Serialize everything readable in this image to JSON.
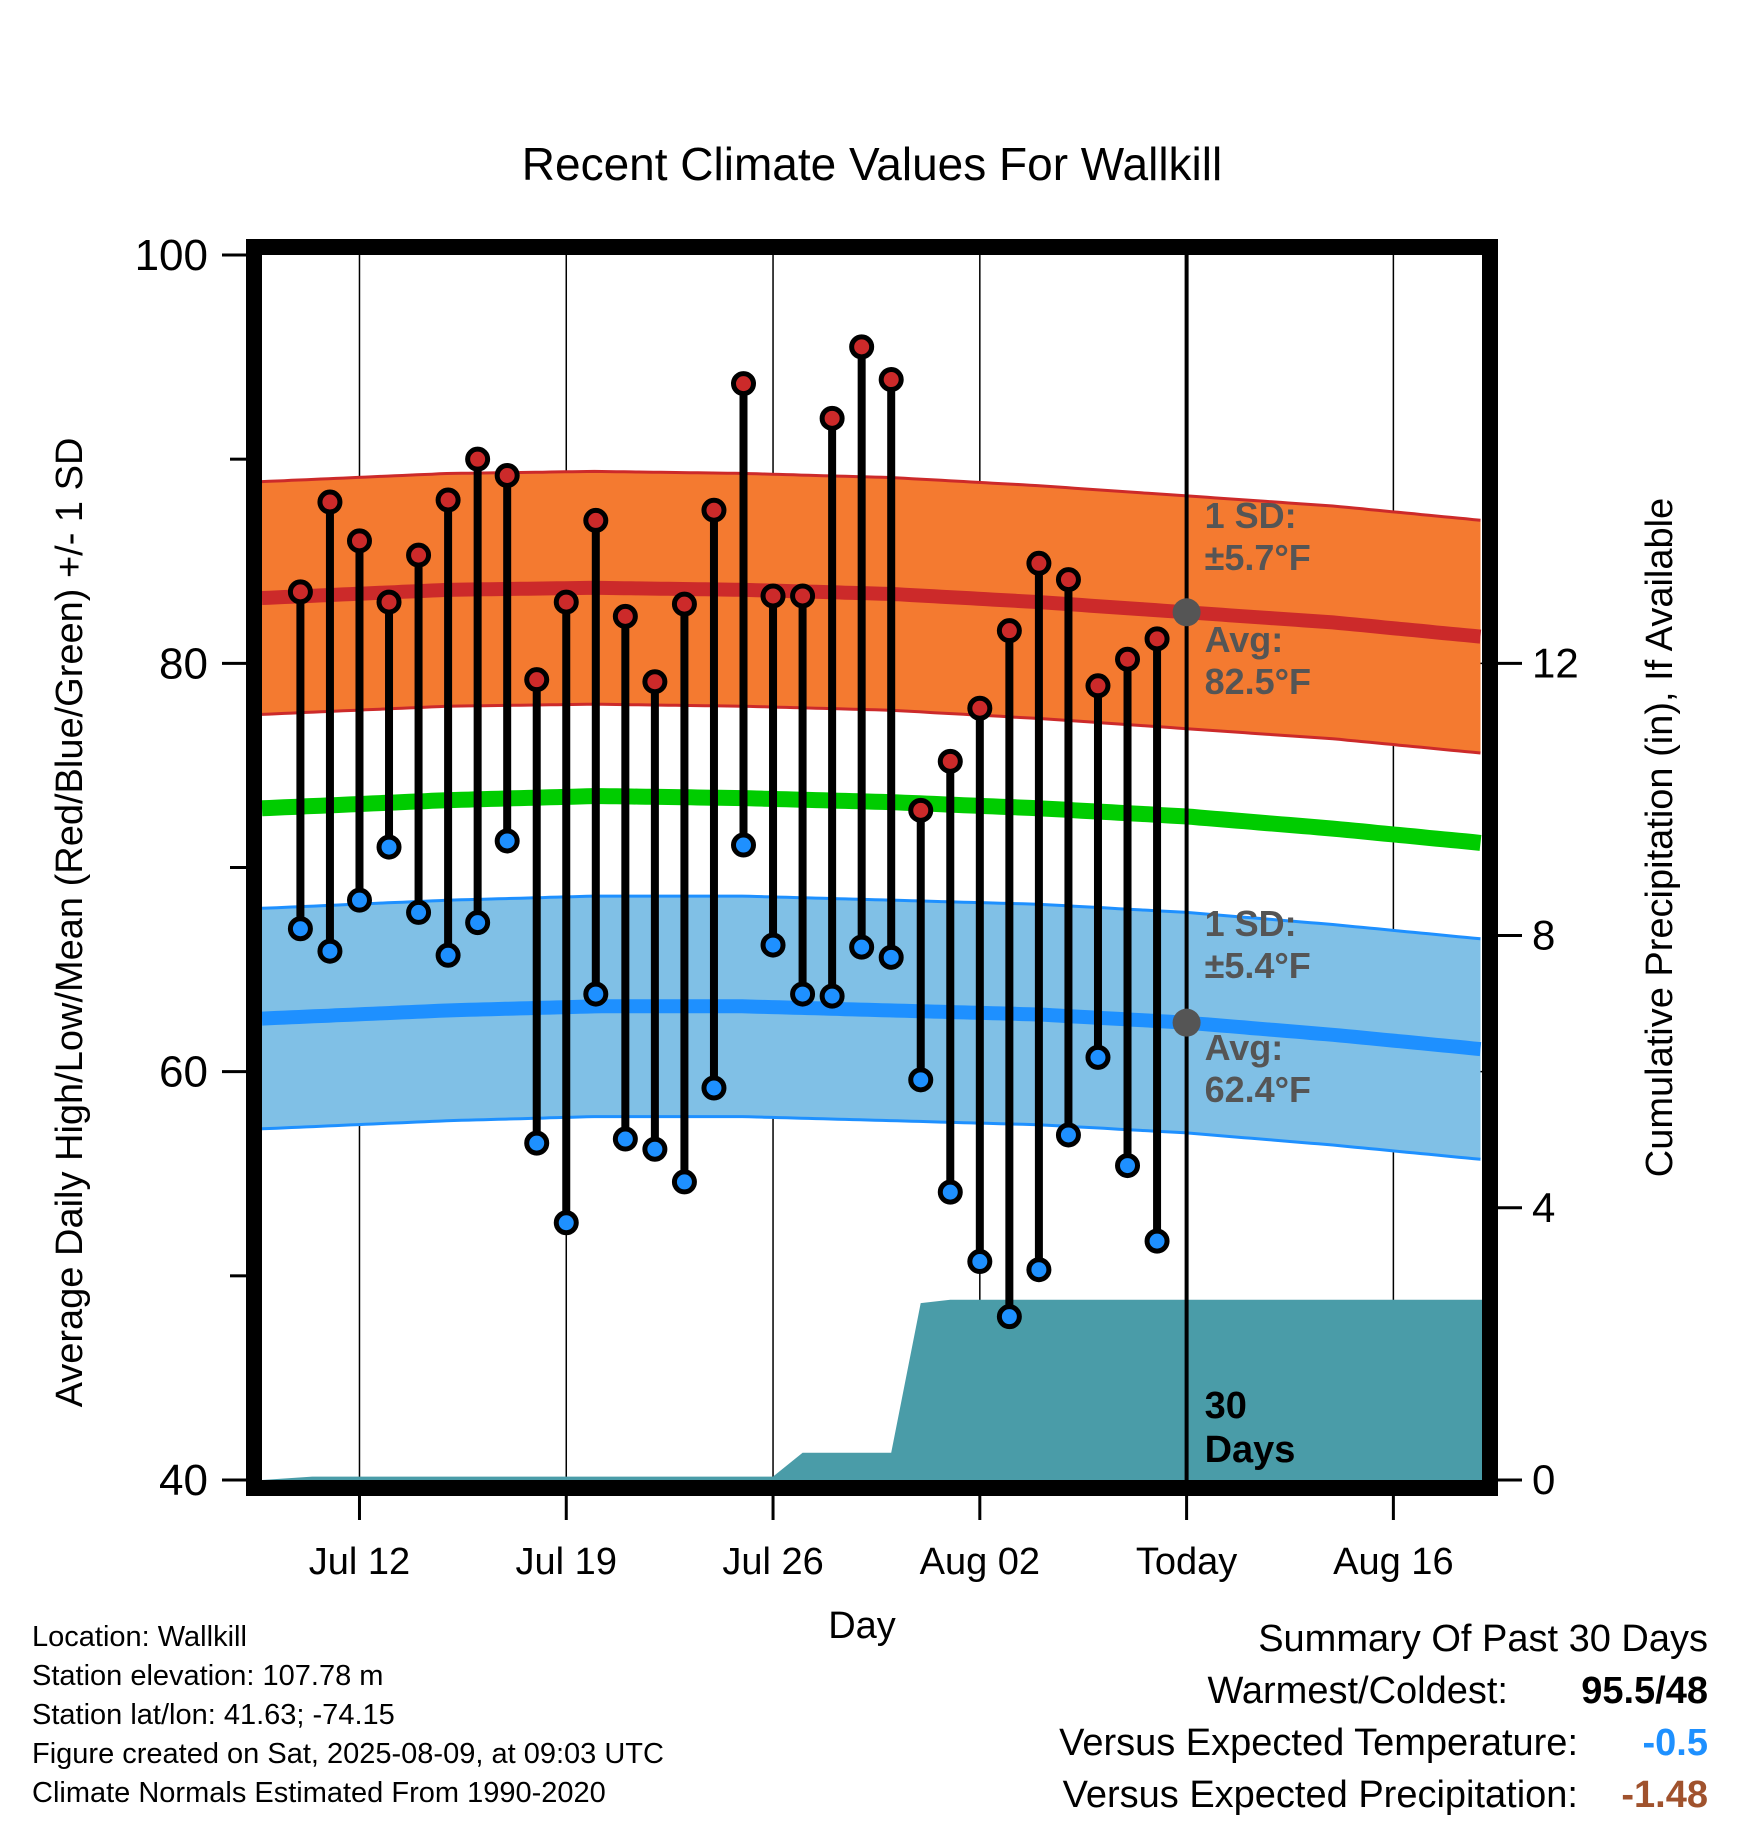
{
  "chart_data": {
    "type": "line",
    "title": "Recent Climate Values For Wallkill",
    "xlabel": "Day",
    "ylabel": "Average Daily High/Low/Mean (Red/Blue/Green) +/- 1 SD",
    "y2label": "Cumulative Precipitation (in), If Available",
    "ylim": [
      40,
      100
    ],
    "y_ticks": [
      "40",
      "60",
      "80",
      "100"
    ],
    "y2lim": [
      0,
      18
    ],
    "y2_ticks": [
      "0",
      "4",
      "8",
      "12"
    ],
    "x_ticks": [
      {
        "label": "Jul 12",
        "day": 12
      },
      {
        "label": "Jul 19",
        "day": 19
      },
      {
        "label": "Jul 26",
        "day": 26
      },
      {
        "label": "Aug 02",
        "day": 33
      },
      {
        "label": "Today",
        "day": 40
      },
      {
        "label": "Aug 16",
        "day": 47
      }
    ],
    "xlim_day": [
      8.7,
      50
    ],
    "days": [
      10,
      11,
      12,
      13,
      14,
      15,
      16,
      17,
      18,
      19,
      20,
      21,
      22,
      23,
      24,
      25,
      26,
      27,
      28,
      29,
      30,
      31,
      32,
      33,
      34,
      35,
      36,
      37,
      38,
      39
    ],
    "daily_high": [
      83.5,
      87.9,
      86.0,
      83.0,
      85.3,
      88.0,
      90.0,
      89.2,
      79.2,
      83.0,
      87.0,
      82.3,
      79.1,
      82.9,
      87.5,
      93.7,
      83.3,
      83.3,
      92.0,
      95.5,
      93.9,
      72.8,
      75.2,
      77.8,
      81.6,
      84.9,
      84.1,
      78.9,
      80.2,
      81.2
    ],
    "daily_low": [
      67.0,
      65.9,
      68.4,
      71.0,
      67.8,
      65.7,
      67.3,
      71.3,
      56.5,
      52.6,
      63.8,
      56.7,
      56.2,
      54.6,
      59.2,
      71.1,
      66.2,
      63.8,
      63.7,
      66.1,
      65.6,
      59.6,
      54.1,
      50.7,
      48.0,
      50.3,
      56.9,
      60.7,
      55.4,
      51.7
    ],
    "normal_days": [
      8.7,
      15,
      20,
      25,
      30,
      35,
      40,
      45,
      50
    ],
    "normal_high": [
      83.2,
      83.6,
      83.7,
      83.6,
      83.4,
      83.0,
      82.5,
      82.0,
      81.3
    ],
    "normal_low": [
      62.6,
      63.0,
      63.2,
      63.2,
      63.0,
      62.8,
      62.4,
      61.8,
      61.1
    ],
    "normal_mean": [
      72.9,
      73.3,
      73.5,
      73.4,
      73.2,
      72.9,
      72.5,
      71.9,
      71.2
    ],
    "sd_high": 5.7,
    "sd_low": 5.4,
    "precip_days": [
      8.7,
      10.4,
      26,
      27,
      30,
      31,
      32,
      50
    ],
    "precip_cum": [
      0.0,
      0.05,
      0.05,
      0.4,
      0.4,
      2.6,
      2.65,
      2.65
    ],
    "today_day": 40,
    "today_avg_high": 82.5,
    "today_avg_low": 62.4,
    "colors": {
      "high_band": "#f47a30",
      "high_line": "#cc2a2a",
      "low_band": "#80c0e6",
      "low_line": "#1e90ff",
      "mean_line": "#00cc00",
      "precip": "#4a9ca8",
      "high_dot": "#cc2a2a",
      "low_dot": "#1e90ff",
      "annotation": "#555555"
    }
  },
  "annotations": {
    "high_sd_label": "1 SD:",
    "high_sd_value": "±5.7°F",
    "high_avg_label": "Avg:",
    "high_avg_value": "82.5°F",
    "low_sd_label": "1 SD:",
    "low_sd_value": "±5.4°F",
    "low_avg_label": "Avg:",
    "low_avg_value": "62.4°F",
    "days_number": "30",
    "days_word": "Days"
  },
  "footer": {
    "location": "Location: Wallkill",
    "elevation": "Station elevation: 107.78 m",
    "latlon": "Station lat/lon: 41.63; -74.15",
    "created": "Figure created on Sat, 2025-08-09, at 09:03 UTC",
    "normals": "Climate Normals Estimated From 1990-2020"
  },
  "summary": {
    "title": "Summary Of Past 30 Days",
    "warmest_label": "Warmest/Coldest:",
    "warmest_value": "95.5/48",
    "temp_label": "Versus Expected Temperature:",
    "temp_value": "-0.5",
    "temp_color": "#1e90ff",
    "precip_label": "Versus Expected Precipitation:",
    "precip_value": "-1.48",
    "precip_color": "#a0522d"
  }
}
